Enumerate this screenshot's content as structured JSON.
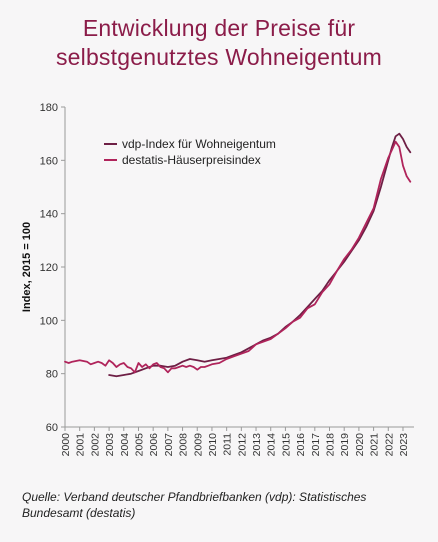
{
  "title_lines": [
    "Entwicklung der Preise für",
    "selbstgenutztes Wohneigentum"
  ],
  "source_lines": [
    "Quelle: Verband deutscher Pfandbriefbanken (vdp): Statistisches",
    "Bundesamt (destatis)"
  ],
  "chart_data": {
    "type": "line",
    "title": "Entwicklung der Preise für selbstgenutztes Wohneigentum",
    "xlabel": "",
    "ylabel": "Index, 2015 = 100",
    "ylim": [
      60,
      180
    ],
    "yticks": [
      60,
      80,
      100,
      120,
      140,
      160,
      180
    ],
    "xlim": [
      2000,
      2023.75
    ],
    "xticks": [
      "2000",
      "2001",
      "2002",
      "2003",
      "2004",
      "2005",
      "2006",
      "2007",
      "2008",
      "2009",
      "2010",
      "2011",
      "2012",
      "2013",
      "2014",
      "2015",
      "2016",
      "2017",
      "2018",
      "2019",
      "2020",
      "2021",
      "2022",
      "2023"
    ],
    "grid": false,
    "legend": "top-left",
    "series": [
      {
        "name": "vdp-Index für Wohneigentum",
        "color": "#6e1f45",
        "x": [
          2003,
          2003.5,
          2004,
          2004.5,
          2005,
          2005.5,
          2006,
          2006.5,
          2007,
          2007.5,
          2008,
          2008.5,
          2009,
          2009.5,
          2010,
          2010.5,
          2011,
          2011.5,
          2012,
          2012.5,
          2013,
          2013.5,
          2014,
          2014.5,
          2015,
          2015.5,
          2016,
          2016.5,
          2017,
          2017.5,
          2018,
          2018.5,
          2019,
          2019.5,
          2020,
          2020.5,
          2021,
          2021.5,
          2022,
          2022.25,
          2022.5,
          2022.75,
          2023,
          2023.25,
          2023.5
        ],
        "y": [
          79.5,
          79,
          79.5,
          80,
          81,
          82,
          83,
          83,
          82.5,
          83,
          84.5,
          85.5,
          85,
          84.5,
          85,
          85.5,
          86,
          87,
          88,
          89.5,
          91,
          92.5,
          93.5,
          95,
          97.5,
          99.5,
          102,
          105,
          108,
          111,
          115,
          118.5,
          122,
          126,
          130,
          135,
          141,
          150,
          160,
          165,
          169,
          170,
          168,
          165,
          163
        ]
      },
      {
        "name": "destatis-Häuserpreisindex",
        "color": "#b0245b",
        "x": [
          2000,
          2000.25,
          2000.5,
          2001,
          2001.5,
          2001.75,
          2002,
          2002.25,
          2002.5,
          2002.75,
          2003,
          2003.25,
          2003.5,
          2003.75,
          2004,
          2004.25,
          2004.5,
          2004.75,
          2005,
          2005.25,
          2005.5,
          2005.75,
          2006,
          2006.25,
          2006.5,
          2006.75,
          2007,
          2007.25,
          2007.5,
          2007.75,
          2008,
          2008.25,
          2008.5,
          2008.75,
          2009,
          2009.25,
          2009.5,
          2009.75,
          2010,
          2010.5,
          2011,
          2011.5,
          2012,
          2012.5,
          2013,
          2013.5,
          2014,
          2014.5,
          2015,
          2015.5,
          2016,
          2016.5,
          2017,
          2017.5,
          2018,
          2018.5,
          2019,
          2019.5,
          2020,
          2020.5,
          2021,
          2021.5,
          2022,
          2022.25,
          2022.5,
          2022.75,
          2023,
          2023.25,
          2023.5
        ],
        "y": [
          84.5,
          84,
          84.5,
          85,
          84.5,
          83.5,
          84,
          84.5,
          84,
          83,
          85,
          84,
          82.5,
          83.5,
          84,
          82.5,
          82,
          80.5,
          84,
          82.5,
          83.5,
          82,
          83.5,
          84,
          82.5,
          82,
          80.5,
          82,
          82,
          82.5,
          83,
          82.5,
          83,
          82.5,
          81.5,
          82.5,
          82.5,
          83,
          83.5,
          84,
          85.5,
          86.5,
          87.5,
          88.5,
          91,
          92,
          93,
          95,
          97,
          99.5,
          101,
          104.5,
          106,
          110.5,
          113.5,
          118.5,
          123,
          126.5,
          131,
          136.5,
          142,
          153,
          161,
          164,
          167,
          165,
          158,
          154,
          152
        ]
      }
    ]
  }
}
